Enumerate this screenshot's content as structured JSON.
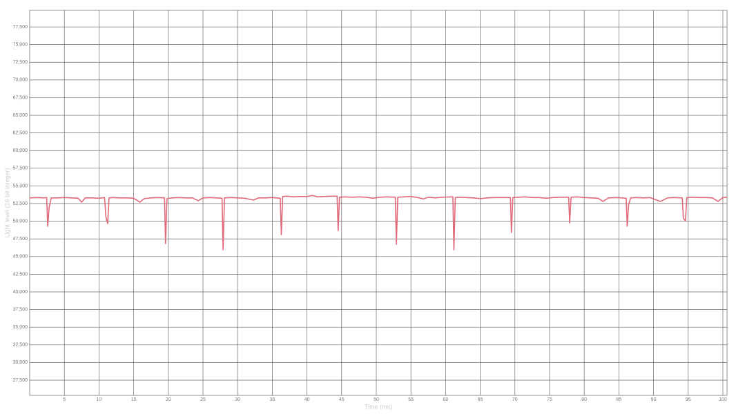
{
  "chart_data": {
    "type": "line",
    "xlabel": "Time (ms)",
    "ylabel": "Light level (16 bit integer)",
    "color": "#e0697a",
    "grid": true,
    "xlim": [
      0,
      100.6
    ],
    "ylim": [
      25350,
      79850
    ],
    "xticks": [
      5,
      10,
      15,
      20,
      25,
      30,
      35,
      40,
      45,
      50,
      55,
      60,
      65,
      70,
      75,
      80,
      85,
      90,
      95,
      100
    ],
    "yticks": [
      {
        "value": 27500,
        "label": "27,500"
      },
      {
        "value": 30000,
        "label": "30,000"
      },
      {
        "value": 32500,
        "label": "32,500"
      },
      {
        "value": 35000,
        "label": "35,000"
      },
      {
        "value": 37500,
        "label": "37,500"
      },
      {
        "value": 40000,
        "label": "40,000"
      },
      {
        "value": 42500,
        "label": "42,500"
      },
      {
        "value": 45000,
        "label": "45,000"
      },
      {
        "value": 47500,
        "label": "47,500"
      },
      {
        "value": 50000,
        "label": "50,000"
      },
      {
        "value": 52500,
        "label": "52,500"
      },
      {
        "value": 55000,
        "label": "55,000"
      },
      {
        "value": 57500,
        "label": "57,500"
      },
      {
        "value": 60000,
        "label": "60,000"
      },
      {
        "value": 62500,
        "label": "62,500"
      },
      {
        "value": 65000,
        "label": "65,000"
      },
      {
        "value": 67500,
        "label": "67,500"
      },
      {
        "value": 70000,
        "label": "70,000"
      },
      {
        "value": 72500,
        "label": "72,500"
      },
      {
        "value": 75000,
        "label": "75,000"
      },
      {
        "value": 77500,
        "label": "77,500"
      }
    ],
    "x": [
      0,
      1,
      2,
      2.45,
      2.6,
      2.8,
      3.1,
      4,
      5,
      6,
      7,
      7.5,
      8,
      9,
      10,
      10.8,
      11.0,
      11.25,
      11.45,
      12,
      13,
      14,
      15,
      15.9,
      16.5,
      17.5,
      18.5,
      19.45,
      19.6,
      19.8,
      20.5,
      21.5,
      22.5,
      23.5,
      24.3,
      25,
      26,
      27,
      27.75,
      27.9,
      28.1,
      29,
      30,
      31,
      32.3,
      33,
      34,
      35,
      36.15,
      36.3,
      36.5,
      37,
      38,
      39,
      40,
      40.8,
      41.5,
      42.5,
      43.5,
      44.35,
      44.5,
      44.7,
      45.5,
      46.5,
      47.5,
      48.5,
      49.5,
      50.5,
      51.5,
      52.75,
      52.9,
      53.1,
      54,
      55,
      56,
      56.8,
      57.5,
      58.5,
      59.5,
      61.05,
      61.2,
      61.4,
      62,
      63,
      64,
      65,
      66,
      67,
      68,
      69.35,
      69.5,
      69.7,
      70.5,
      71.5,
      72.5,
      73.5,
      74.5,
      75.5,
      76.5,
      77.75,
      77.9,
      78.1,
      79,
      80,
      81,
      82,
      82.7,
      83.5,
      84.5,
      85.5,
      86.05,
      86.2,
      86.4,
      86.7,
      87.5,
      88.5,
      89.5,
      91.0,
      92,
      93,
      94.15,
      94.3,
      94.6,
      94.8,
      95.5,
      96.5,
      97.5,
      98.5,
      99.3,
      100,
      100.6
    ],
    "values": [
      53300,
      53350,
      53300,
      53350,
      49280,
      51900,
      53300,
      53300,
      53350,
      53300,
      53250,
      52700,
      53300,
      53300,
      53250,
      53350,
      50600,
      49670,
      53300,
      53350,
      53300,
      53300,
      53250,
      52700,
      53200,
      53300,
      53350,
      53300,
      46840,
      53200,
      53300,
      53350,
      53300,
      53300,
      52900,
      53300,
      53350,
      53300,
      53250,
      45960,
      53300,
      53350,
      53300,
      53250,
      53000,
      53300,
      53300,
      53350,
      53250,
      48100,
      53500,
      53550,
      53450,
      53500,
      53500,
      53650,
      53450,
      53500,
      53550,
      53550,
      48690,
      53400,
      53450,
      53400,
      53450,
      53400,
      53250,
      53400,
      53450,
      53400,
      46740,
      53400,
      53450,
      53500,
      53350,
      53150,
      53400,
      53300,
      53400,
      53450,
      45960,
      53350,
      53400,
      53350,
      53300,
      53200,
      53300,
      53350,
      53350,
      53350,
      48400,
      53350,
      53400,
      53450,
      53350,
      53350,
      53250,
      53350,
      53400,
      53400,
      49760,
      53400,
      53450,
      53350,
      53300,
      53250,
      52800,
      53300,
      53350,
      53300,
      53250,
      49280,
      52300,
      53300,
      53350,
      53300,
      53350,
      52800,
      53300,
      53350,
      53300,
      50400,
      50060,
      53350,
      53400,
      53350,
      53350,
      53300,
      52800,
      53350,
      53400
    ]
  }
}
